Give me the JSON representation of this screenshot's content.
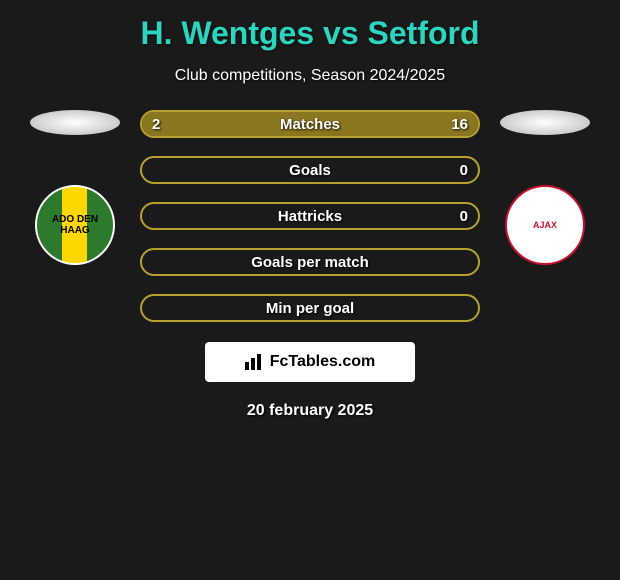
{
  "title": "H. Wentges vs Setford",
  "subtitle": "Club competitions, Season 2024/2025",
  "player_left": {
    "club_label": "ADO DEN HAAG"
  },
  "player_right": {
    "club_label": "AJAX"
  },
  "stats": [
    {
      "label": "Matches",
      "left_val": "2",
      "right_val": "16",
      "left_pct": 11,
      "right_pct": 89
    },
    {
      "label": "Goals",
      "left_val": "",
      "right_val": "0",
      "left_pct": 0,
      "right_pct": 0
    },
    {
      "label": "Hattricks",
      "left_val": "",
      "right_val": "0",
      "left_pct": 0,
      "right_pct": 0
    },
    {
      "label": "Goals per match",
      "left_val": "",
      "right_val": "",
      "left_pct": 0,
      "right_pct": 0
    },
    {
      "label": "Min per goal",
      "left_val": "",
      "right_val": "",
      "left_pct": 0,
      "right_pct": 0
    }
  ],
  "footer_brand": "FcTables.com",
  "date": "20 february 2025",
  "colors": {
    "accent": "#2dd4bf",
    "bar_border": "#b8a030",
    "bar_fill": "#8a7520",
    "background": "#1a1a1a"
  }
}
